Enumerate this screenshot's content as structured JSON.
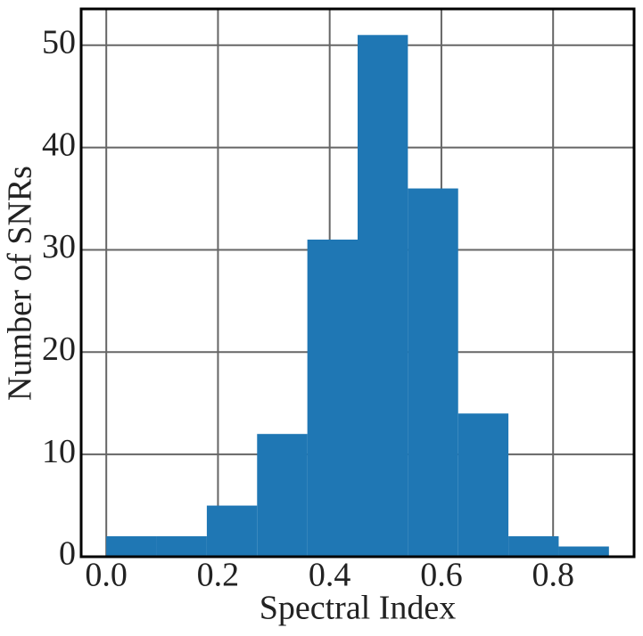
{
  "chart_data": {
    "type": "histogram",
    "xlabel": "Spectral Index",
    "ylabel": "Number of SNRs",
    "bins": [
      0.0,
      0.09,
      0.18,
      0.27,
      0.36,
      0.45,
      0.54,
      0.63,
      0.72,
      0.81,
      0.9
    ],
    "values": [
      2,
      2,
      5,
      12,
      31,
      51,
      36,
      14,
      2,
      1
    ],
    "color": "#1f77b4",
    "xlim": [
      -0.045,
      0.945
    ],
    "ylim": [
      0,
      53.55
    ],
    "xticks": [
      {
        "value": 0,
        "label": "0.0"
      },
      {
        "value": 0.2,
        "label": "0.2"
      },
      {
        "value": 0.4,
        "label": "0.4"
      },
      {
        "value": 0.6,
        "label": "0.6"
      },
      {
        "value": 0.8,
        "label": "0.8"
      }
    ],
    "yticks": [
      0,
      10,
      20,
      30,
      40,
      50
    ],
    "grid": true
  }
}
